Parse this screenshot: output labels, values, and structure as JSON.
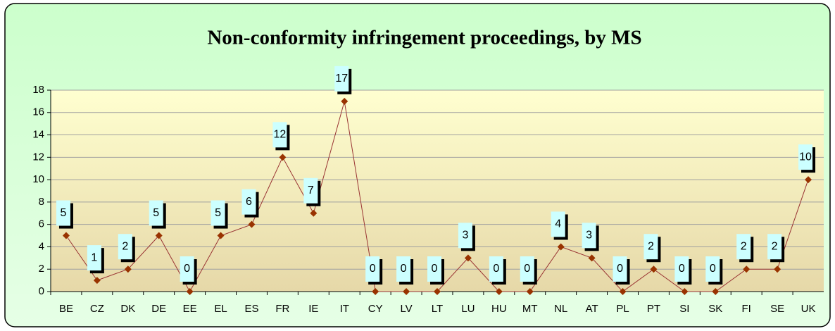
{
  "chart_data": {
    "type": "line",
    "title": "Non-conformity infringement proceedings, by MS",
    "categories": [
      "BE",
      "CZ",
      "DK",
      "DE",
      "EE",
      "EL",
      "ES",
      "FR",
      "IE",
      "IT",
      "CY",
      "LV",
      "LT",
      "LU",
      "HU",
      "MT",
      "NL",
      "AT",
      "PL",
      "PT",
      "SI",
      "SK",
      "FI",
      "SE",
      "UK"
    ],
    "series": [
      {
        "name": "Non-conformity infringement proceedings",
        "color": "#993333",
        "values": [
          5,
          1,
          2,
          5,
          0,
          5,
          6,
          12,
          7,
          17,
          0,
          0,
          0,
          3,
          0,
          0,
          4,
          3,
          0,
          2,
          0,
          0,
          2,
          2,
          10
        ]
      }
    ],
    "ylim": [
      0,
      18
    ],
    "yticks": [
      0,
      2,
      4,
      6,
      8,
      10,
      12,
      14,
      16,
      18
    ],
    "grid": true
  }
}
